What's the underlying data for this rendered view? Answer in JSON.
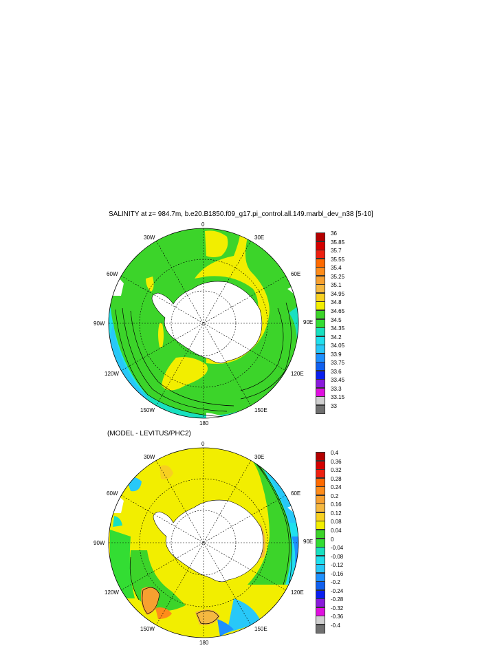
{
  "top_panel": {
    "title": "SALINITY at z= 984.7m, b.e20.B1850.f09_g17.pi_control.all.149.marbl_dev_n38 [5-10]",
    "longitude_labels": {
      "top": "0",
      "upper_left": "30W",
      "upper_right": "30E",
      "left_high": "60W",
      "right_high": "60E",
      "left": "90W",
      "right": "90E",
      "lower_left": "120W",
      "lower_right": "120E",
      "bottom_left": "150W",
      "bottom_right": "150E",
      "bottom": "180"
    },
    "colorbar": {
      "labels": [
        "36",
        "35.85",
        "35.7",
        "35.55",
        "35.4",
        "35.25",
        "35.1",
        "34.95",
        "34.8",
        "34.65",
        "34.5",
        "34.35",
        "34.2",
        "34.05",
        "33.9",
        "33.75",
        "33.6",
        "33.45",
        "33.3",
        "33.15",
        "33"
      ],
      "colors": [
        "#b40000",
        "#d40000",
        "#ee2010",
        "#ff6a00",
        "#ff8c1a",
        "#f7a030",
        "#f5b840",
        "#f7d020",
        "#f2ee00",
        "#3cd42a",
        "#33dd33",
        "#18e0c0",
        "#20e0ee",
        "#28c8f8",
        "#1e90ff",
        "#1060f0",
        "#0a1ef0",
        "#8a1adc",
        "#e010e0",
        "#d0d0d0",
        "#707070"
      ]
    }
  },
  "bottom_panel": {
    "title": "(MODEL - LEVITUS/PHC2)",
    "longitude_labels": {
      "top": "0",
      "upper_left": "30W",
      "upper_right": "30E",
      "left_high": "60W",
      "right_high": "60E",
      "left": "90W",
      "right": "90E",
      "lower_left": "120W",
      "lower_right": "120E",
      "bottom_left": "150W",
      "bottom_right": "150E",
      "bottom": "180"
    },
    "colorbar": {
      "labels": [
        "0.4",
        "0.36",
        "0.32",
        "0.28",
        "0.24",
        "0.2",
        "0.16",
        "0.12",
        "0.08",
        "0.04",
        "0",
        "-0.04",
        "-0.08",
        "-0.12",
        "-0.16",
        "-0.2",
        "-0.24",
        "-0.28",
        "-0.32",
        "-0.36",
        "-0.4"
      ],
      "colors": [
        "#b40000",
        "#d40000",
        "#ee2010",
        "#ff6a00",
        "#ff8c1a",
        "#f7a030",
        "#f5b840",
        "#f7d020",
        "#f2ee00",
        "#3cd42a",
        "#33dd33",
        "#18e0c0",
        "#20e0ee",
        "#28c8f8",
        "#1e90ff",
        "#1060f0",
        "#0a1ef0",
        "#8a1adc",
        "#e010e0",
        "#d0d0d0",
        "#707070"
      ]
    }
  }
}
